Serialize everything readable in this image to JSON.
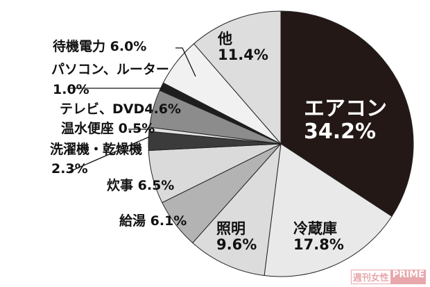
{
  "chart_data": {
    "type": "pie",
    "start": "top, clockwise",
    "slices": [
      {
        "label": "エアコン",
        "value": 34.2,
        "value_text": "34.2%",
        "color": "#231815"
      },
      {
        "label": "冷蔵庫",
        "value": 17.8,
        "value_text": "17.8%",
        "color": "#e9e9e9"
      },
      {
        "label": "照明",
        "value": 9.6,
        "value_text": "9.6%",
        "color": "#dcdcdc"
      },
      {
        "label": "給湯",
        "value": 6.1,
        "value_text": "6.1%",
        "color": "#b3b3b3"
      },
      {
        "label": "炊事",
        "value": 6.5,
        "value_text": "6.5%",
        "color": "#dadada"
      },
      {
        "label": "洗濯機・乾燥機",
        "value": 2.3,
        "value_text": "2.3%",
        "color": "#3b3b3b"
      },
      {
        "label": "温水便座",
        "value": 0.5,
        "value_text": "0.5%",
        "color": "#e2e2e2"
      },
      {
        "label": "テレビ、DVD",
        "value": 4.6,
        "value_text": "4.6%",
        "color": "#8c8c8c"
      },
      {
        "label": "パソコン、ルーター",
        "value": 1.0,
        "value_text": "1.0%",
        "color": "#1e1e1e"
      },
      {
        "label": "待機電力",
        "value": 6.0,
        "value_text": "6.0%",
        "color": "#f1f1f1"
      },
      {
        "label": "他",
        "value": 11.4,
        "value_text": "11.4%",
        "color": "#dddddd"
      }
    ]
  },
  "watermark": {
    "part1": "週刊女性",
    "part2": "PRIME",
    "color": "#e8a7ab"
  }
}
